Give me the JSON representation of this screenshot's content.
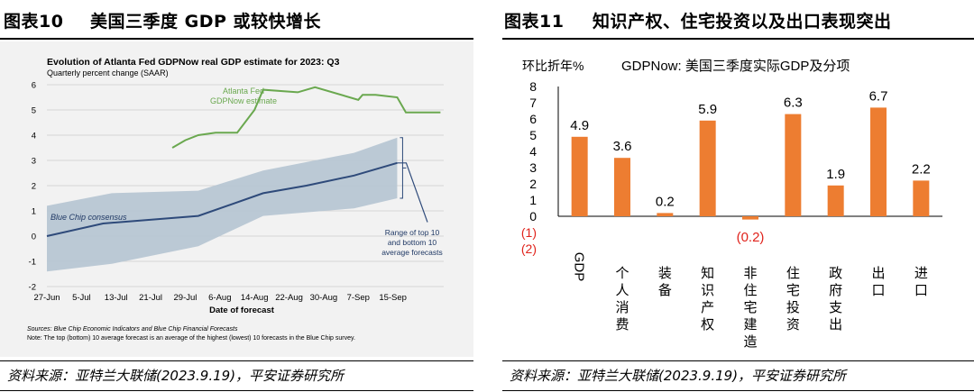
{
  "left": {
    "fig_no": "图表10",
    "fig_title": "美国三季度 GDP 或较快增长",
    "source": "资料来源：亚特兰大联储(2023.9.19)，平安证券研究所",
    "chart_data": {
      "type": "line",
      "title": "Evolution of Atlanta Fed GDPNow real GDP estimate for 2023: Q3",
      "subtitle": "Quarterly percent change (SAAR)",
      "xlabel": "Date of forecast",
      "ylabel": "",
      "ylim": [
        -2,
        6
      ],
      "yticks": [
        "-2",
        "-1",
        "0",
        "1",
        "2",
        "3",
        "4",
        "5",
        "6"
      ],
      "xticks": [
        "27-Jun",
        "5-Jul",
        "13-Jul",
        "21-Jul",
        "29-Jul",
        "6-Aug",
        "14-Aug",
        "22-Aug",
        "30-Aug",
        "7-Sep",
        "15-Sep"
      ],
      "grid": true,
      "series": [
        {
          "name": "Atlanta Fed GDPNow estimate",
          "color": "#6aa84f",
          "points": [
            [
              29,
              3.5
            ],
            [
              32,
              3.8
            ],
            [
              35,
              4.0
            ],
            [
              39,
              4.1
            ],
            [
              44,
              4.1
            ],
            [
              48,
              5.0
            ],
            [
              50,
              5.8
            ],
            [
              58,
              5.7
            ],
            [
              62,
              5.9
            ],
            [
              72,
              5.4
            ],
            [
              73,
              5.6
            ],
            [
              76,
              5.6
            ],
            [
              81,
              5.5
            ],
            [
              83,
              4.9
            ],
            [
              88,
              4.9
            ],
            [
              91,
              4.9
            ]
          ]
        },
        {
          "name": "Blue Chip consensus",
          "color": "#2e4a7a",
          "points": [
            [
              0,
              0
            ],
            [
              13,
              0.5
            ],
            [
              35,
              0.8
            ],
            [
              50,
              1.7
            ],
            [
              60,
              2.0
            ],
            [
              71,
              2.4
            ],
            [
              81,
              2.9
            ]
          ]
        }
      ],
      "band": {
        "name": "Range of top 10 and bottom 10 average forecasts",
        "color": "#b7c6d3",
        "upper": [
          [
            0,
            1.2
          ],
          [
            15,
            1.7
          ],
          [
            35,
            1.8
          ],
          [
            50,
            2.6
          ],
          [
            71,
            3.3
          ],
          [
            81,
            3.9
          ]
        ],
        "lower": [
          [
            0,
            -1.4
          ],
          [
            15,
            -1.1
          ],
          [
            35,
            -0.4
          ],
          [
            50,
            0.8
          ],
          [
            71,
            1.1
          ],
          [
            81,
            1.5
          ]
        ]
      },
      "annotations": {
        "gdpnow": [
          "Atlanta Fed",
          "GDPNow estimate"
        ],
        "bluechip": "Blue Chip consensus",
        "range": [
          "Range of top 10",
          "and bottom 10",
          "average forecasts"
        ]
      },
      "notes": [
        "Sources: Blue Chip Economic Indicators and Blue Chip Financial Forecasts",
        "Note: The top (bottom) 10 average forecast is an average of the highest (lowest) 10 forecasts in the Blue Chip survey."
      ]
    }
  },
  "right": {
    "fig_no": "图表11",
    "fig_title": "知识产权、住宅投资以及出口表现突出",
    "source": "资料来源：亚特兰大联储(2023.9.19)，平安证券研究所",
    "chart_data": {
      "type": "bar",
      "title": "GDPNow: 美国三季度实际GDP及分项",
      "ylabel": "环比折年%",
      "ylim": [
        -2,
        8
      ],
      "yticks": [
        "(2)",
        "(1)",
        "0",
        "1",
        "2",
        "3",
        "4",
        "5",
        "6",
        "7",
        "8"
      ],
      "categories": [
        "GDP",
        "个人消费",
        "装备",
        "知识产权",
        "非住宅建造",
        "住宅投资",
        "政府支出",
        "出口",
        "进口"
      ],
      "values": [
        4.9,
        3.6,
        0.2,
        5.9,
        -0.2,
        6.3,
        1.9,
        6.7,
        2.2
      ],
      "labels": [
        "4.9",
        "3.6",
        "0.2",
        "5.9",
        "(0.2)",
        "6.3",
        "1.9",
        "6.7",
        "2.2"
      ],
      "color": "#ed7d31",
      "negative_label_color": "#e0231c"
    }
  }
}
